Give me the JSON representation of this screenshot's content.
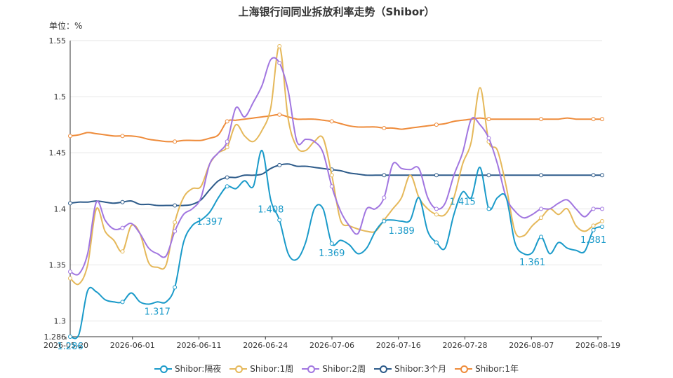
{
  "chart_data": {
    "type": "line",
    "title": "上海银行间同业拆放利率走势（Shibor）",
    "ylabel": "单位：%",
    "ylim": [
      1.286,
      1.55
    ],
    "yticks": [
      1.286,
      1.3,
      1.35,
      1.4,
      1.45,
      1.5,
      1.55
    ],
    "xticks": [
      "2026-05-20",
      "2026-06-01",
      "2026-06-11",
      "2026-06-24",
      "2026-07-06",
      "2026-07-16",
      "2026-07-28",
      "2026-08-07",
      "2026-08-19"
    ],
    "grid": true,
    "legend_position": "bottom",
    "series": [
      {
        "name": "Shibor:隔夜",
        "color": "#1a9ac9",
        "values": [
          1.286,
          1.288,
          1.327,
          1.326,
          1.319,
          1.317,
          1.317,
          1.325,
          1.317,
          1.315,
          1.317,
          1.317,
          1.33,
          1.37,
          1.385,
          1.39,
          1.397,
          1.41,
          1.42,
          1.418,
          1.425,
          1.42,
          1.452,
          1.408,
          1.39,
          1.36,
          1.355,
          1.37,
          1.4,
          1.4,
          1.369,
          1.372,
          1.368,
          1.36,
          1.365,
          1.38,
          1.389,
          1.39,
          1.389,
          1.39,
          1.41,
          1.38,
          1.37,
          1.365,
          1.395,
          1.415,
          1.41,
          1.437,
          1.4,
          1.41,
          1.41,
          1.37,
          1.36,
          1.361,
          1.375,
          1.36,
          1.37,
          1.365,
          1.363,
          1.362,
          1.381,
          1.384
        ],
        "labels": [
          {
            "index": 0,
            "text": "1.286"
          },
          {
            "index": 10,
            "text": "1.317"
          },
          {
            "index": 16,
            "text": "1.397"
          },
          {
            "index": 23,
            "text": "1.408"
          },
          {
            "index": 30,
            "text": "1.369"
          },
          {
            "index": 38,
            "text": "1.389"
          },
          {
            "index": 45,
            "text": "1.415"
          },
          {
            "index": 53,
            "text": "1.361"
          },
          {
            "index": 60,
            "text": "1.381"
          }
        ]
      },
      {
        "name": "Shibor:1周",
        "color": "#e5b85a",
        "values": [
          1.338,
          1.333,
          1.35,
          1.4,
          1.38,
          1.372,
          1.362,
          1.385,
          1.378,
          1.352,
          1.348,
          1.35,
          1.388,
          1.41,
          1.418,
          1.42,
          1.44,
          1.45,
          1.455,
          1.475,
          1.465,
          1.46,
          1.47,
          1.49,
          1.545,
          1.48,
          1.455,
          1.452,
          1.46,
          1.463,
          1.43,
          1.39,
          1.385,
          1.382,
          1.38,
          1.38,
          1.39,
          1.4,
          1.41,
          1.43,
          1.41,
          1.4,
          1.395,
          1.395,
          1.41,
          1.44,
          1.46,
          1.508,
          1.46,
          1.452,
          1.42,
          1.38,
          1.376,
          1.385,
          1.392,
          1.4,
          1.395,
          1.4,
          1.385,
          1.38,
          1.385,
          1.389
        ],
        "labels": []
      },
      {
        "name": "Shibor:2周",
        "color": "#a176e0",
        "values": [
          1.344,
          1.342,
          1.36,
          1.406,
          1.39,
          1.382,
          1.383,
          1.387,
          1.378,
          1.365,
          1.36,
          1.358,
          1.38,
          1.395,
          1.4,
          1.41,
          1.44,
          1.45,
          1.46,
          1.49,
          1.482,
          1.495,
          1.51,
          1.533,
          1.53,
          1.505,
          1.46,
          1.462,
          1.46,
          1.45,
          1.42,
          1.398,
          1.385,
          1.378,
          1.4,
          1.4,
          1.41,
          1.44,
          1.436,
          1.435,
          1.436,
          1.41,
          1.4,
          1.405,
          1.43,
          1.45,
          1.48,
          1.475,
          1.463,
          1.44,
          1.41,
          1.398,
          1.392,
          1.395,
          1.4,
          1.4,
          1.405,
          1.408,
          1.4,
          1.393,
          1.4,
          1.4
        ],
        "labels": []
      },
      {
        "name": "Shibor:3个月",
        "color": "#2d5b8a",
        "values": [
          1.405,
          1.406,
          1.406,
          1.407,
          1.406,
          1.405,
          1.406,
          1.407,
          1.404,
          1.404,
          1.403,
          1.403,
          1.403,
          1.403,
          1.404,
          1.408,
          1.417,
          1.425,
          1.428,
          1.428,
          1.43,
          1.43,
          1.431,
          1.436,
          1.439,
          1.44,
          1.438,
          1.438,
          1.437,
          1.436,
          1.435,
          1.434,
          1.432,
          1.431,
          1.43,
          1.43,
          1.43,
          1.43,
          1.43,
          1.43,
          1.43,
          1.43,
          1.43,
          1.43,
          1.43,
          1.43,
          1.43,
          1.43,
          1.43,
          1.43,
          1.43,
          1.43,
          1.43,
          1.43,
          1.43,
          1.43,
          1.43,
          1.43,
          1.43,
          1.43,
          1.43,
          1.43
        ],
        "labels": []
      },
      {
        "name": "Shibor:1年",
        "color": "#ee8b3a",
        "values": [
          1.465,
          1.466,
          1.468,
          1.467,
          1.466,
          1.465,
          1.465,
          1.465,
          1.464,
          1.462,
          1.461,
          1.46,
          1.46,
          1.461,
          1.461,
          1.461,
          1.463,
          1.466,
          1.478,
          1.479,
          1.48,
          1.481,
          1.482,
          1.483,
          1.484,
          1.482,
          1.48,
          1.48,
          1.48,
          1.479,
          1.478,
          1.476,
          1.474,
          1.473,
          1.473,
          1.473,
          1.472,
          1.472,
          1.471,
          1.472,
          1.473,
          1.474,
          1.475,
          1.476,
          1.478,
          1.479,
          1.48,
          1.481,
          1.48,
          1.48,
          1.48,
          1.48,
          1.48,
          1.48,
          1.48,
          1.48,
          1.48,
          1.481,
          1.48,
          1.48,
          1.48,
          1.48
        ],
        "labels": []
      }
    ]
  }
}
